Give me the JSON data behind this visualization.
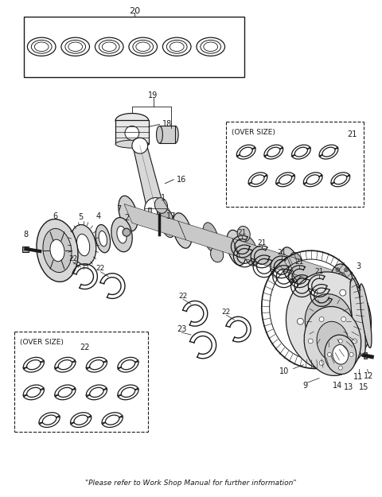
{
  "footer_text": "\"Please refer to Work Shop Manual for further information\"",
  "background_color": "#ffffff",
  "line_color": "#1a1a1a",
  "fig_width": 4.8,
  "fig_height": 6.25,
  "dpi": 100
}
